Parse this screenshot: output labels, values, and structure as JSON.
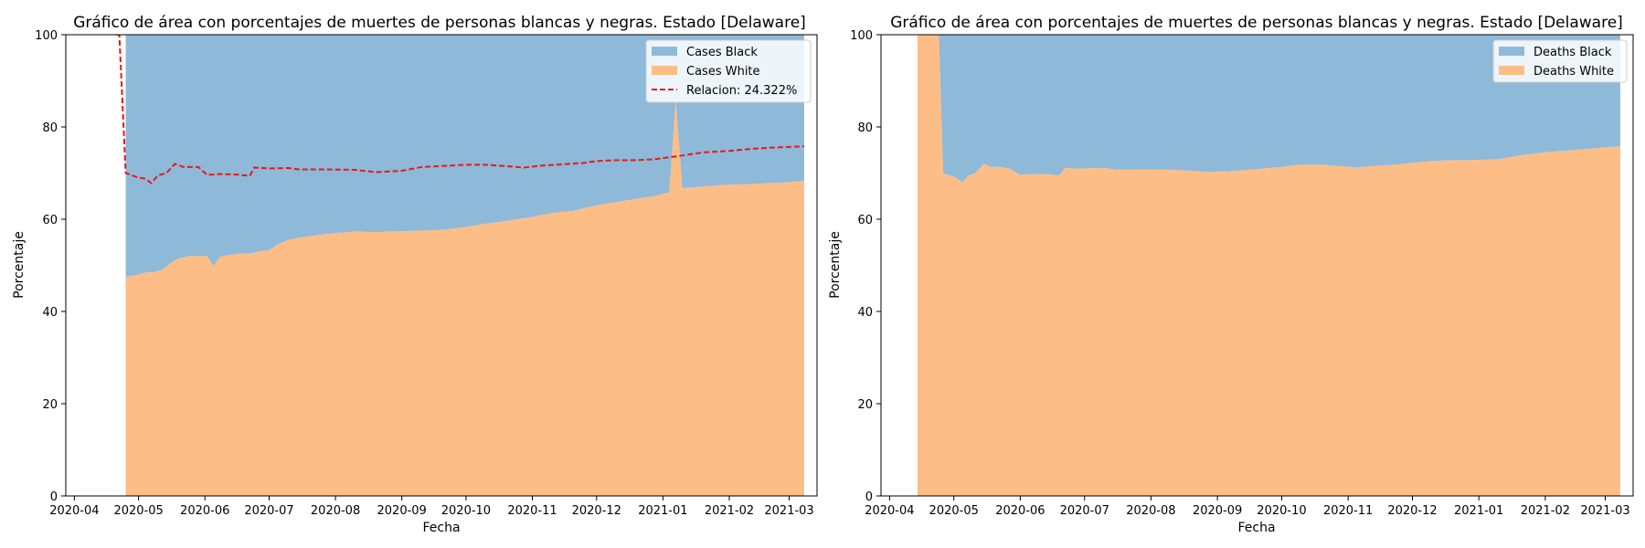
{
  "colors": {
    "black_fill": "#8fb9d9",
    "white_fill": "#fdbd87",
    "ratio_line": "#e41a1c"
  },
  "x_ticks": [
    "2020-04",
    "2020-05",
    "2020-06",
    "2020-07",
    "2020-08",
    "2020-09",
    "2020-10",
    "2020-11",
    "2020-12",
    "2021-01",
    "2021-02",
    "2021-03"
  ],
  "y_ticks": [
    "0",
    "20",
    "40",
    "60",
    "80",
    "100"
  ],
  "chart_data": [
    {
      "type": "area",
      "stacked": true,
      "title": "Gráfico de área con porcentajes de muertes de personas blancas y negras. Estado [Delaware]",
      "xlabel": "Fecha",
      "ylabel": "Porcentaje",
      "xlim": [
        "2020-03-28",
        "2021-03-14"
      ],
      "ylim": [
        0,
        100
      ],
      "grid": false,
      "legend_position": "top-right",
      "x": [
        "2020-04-25",
        "2020-05-01",
        "2020-05-05",
        "2020-05-08",
        "2020-05-12",
        "2020-05-16",
        "2020-05-20",
        "2020-05-25",
        "2020-05-30",
        "2020-06-02",
        "2020-06-05",
        "2020-06-08",
        "2020-06-12",
        "2020-06-18",
        "2020-06-22",
        "2020-06-26",
        "2020-07-01",
        "2020-07-05",
        "2020-07-10",
        "2020-07-15",
        "2020-07-25",
        "2020-08-01",
        "2020-08-10",
        "2020-08-20",
        "2020-09-01",
        "2020-09-10",
        "2020-09-20",
        "2020-10-01",
        "2020-10-10",
        "2020-10-20",
        "2020-11-01",
        "2020-11-10",
        "2020-11-20",
        "2020-12-01",
        "2020-12-10",
        "2020-12-20",
        "2020-12-28",
        "2021-01-01",
        "2021-01-04",
        "2021-01-07",
        "2021-01-10",
        "2021-01-20",
        "2021-02-01",
        "2021-02-10",
        "2021-02-20",
        "2021-03-01",
        "2021-03-08"
      ],
      "series": [
        {
          "name": "Cases White",
          "values": [
            47.5,
            48.0,
            48.5,
            48.5,
            49.0,
            50.5,
            51.5,
            52.0,
            52.0,
            52.0,
            49.8,
            51.8,
            52.2,
            52.6,
            52.5,
            53.0,
            53.3,
            54.5,
            55.5,
            56.0,
            56.6,
            57.0,
            57.3,
            57.2,
            57.4,
            57.5,
            57.7,
            58.3,
            59.0,
            59.6,
            60.5,
            61.3,
            61.8,
            63.0,
            63.7,
            64.4,
            65.0,
            65.5,
            65.8,
            86.0,
            66.7,
            67.1,
            67.5,
            67.6,
            67.8,
            68.0,
            68.3
          ]
        },
        {
          "name": "Cases Black",
          "values": [
            52.5,
            52.0,
            51.5,
            51.5,
            51.0,
            49.5,
            48.5,
            48.0,
            48.0,
            48.0,
            50.2,
            48.2,
            47.8,
            47.4,
            47.5,
            47.0,
            46.7,
            45.5,
            44.5,
            44.0,
            43.4,
            43.0,
            42.7,
            42.8,
            42.6,
            42.5,
            42.3,
            41.7,
            41.0,
            40.4,
            39.5,
            38.7,
            38.2,
            37.0,
            36.3,
            35.6,
            35.0,
            34.5,
            34.2,
            14.0,
            33.3,
            32.9,
            32.5,
            32.4,
            32.2,
            32.0,
            31.7
          ]
        }
      ],
      "ratio": {
        "name": "Relacion: 24.322%",
        "x": [
          "2020-04-22",
          "2020-04-25",
          "2020-04-28",
          "2020-05-01",
          "2020-05-04",
          "2020-05-07",
          "2020-05-10",
          "2020-05-14",
          "2020-05-18",
          "2020-05-22",
          "2020-05-29",
          "2020-06-02",
          "2020-06-08",
          "2020-06-15",
          "2020-06-22",
          "2020-06-24",
          "2020-07-01",
          "2020-07-10",
          "2020-07-15",
          "2020-07-25",
          "2020-08-10",
          "2020-08-20",
          "2020-09-01",
          "2020-09-10",
          "2020-10-01",
          "2020-10-10",
          "2020-10-20",
          "2020-10-28",
          "2020-11-05",
          "2020-11-15",
          "2020-11-25",
          "2020-12-01",
          "2020-12-10",
          "2020-12-20",
          "2020-12-28",
          "2021-01-10",
          "2021-01-20",
          "2021-02-01",
          "2021-02-10",
          "2021-02-20",
          "2021-03-08"
        ],
        "values": [
          100,
          70.0,
          69.5,
          69.0,
          68.8,
          67.8,
          69.5,
          70.0,
          72.0,
          71.3,
          71.3,
          69.6,
          69.8,
          69.7,
          69.4,
          71.2,
          71.0,
          71.1,
          70.8,
          70.8,
          70.7,
          70.2,
          70.5,
          71.3,
          71.8,
          71.8,
          71.5,
          71.2,
          71.6,
          71.9,
          72.2,
          72.6,
          72.8,
          72.8,
          73.0,
          73.8,
          74.5,
          74.8,
          75.2,
          75.5,
          75.8
        ]
      }
    },
    {
      "type": "area",
      "stacked": true,
      "title": "Gráfico de área con porcentajes de muertes de personas blancas y negras. Estado [Delaware]",
      "xlabel": "Fecha",
      "ylabel": "Porcentaje",
      "xlim": [
        "2020-03-28",
        "2021-03-14"
      ],
      "ylim": [
        0,
        100
      ],
      "grid": false,
      "legend_position": "top-right",
      "x": [
        "2020-04-14",
        "2020-04-24",
        "2020-04-26",
        "2020-04-29",
        "2020-05-02",
        "2020-05-05",
        "2020-05-08",
        "2020-05-11",
        "2020-05-15",
        "2020-05-18",
        "2020-05-22",
        "2020-05-27",
        "2020-06-01",
        "2020-06-08",
        "2020-06-15",
        "2020-06-19",
        "2020-06-22",
        "2020-06-25",
        "2020-07-01",
        "2020-07-10",
        "2020-07-15",
        "2020-07-25",
        "2020-08-10",
        "2020-08-20",
        "2020-08-28",
        "2020-09-10",
        "2020-10-01",
        "2020-10-10",
        "2020-10-20",
        "2020-10-28",
        "2020-11-05",
        "2020-11-15",
        "2020-11-25",
        "2020-12-01",
        "2020-12-10",
        "2020-12-20",
        "2020-12-28",
        "2021-01-10",
        "2021-01-20",
        "2021-02-01",
        "2021-02-10",
        "2021-02-20",
        "2021-03-08"
      ],
      "series": [
        {
          "name": "Deaths White",
          "values": [
            100,
            100,
            70.0,
            69.5,
            69.0,
            68.0,
            69.5,
            70.0,
            72.0,
            71.3,
            71.3,
            71.0,
            69.6,
            69.8,
            69.7,
            69.4,
            71.2,
            71.0,
            71.0,
            71.1,
            70.8,
            70.8,
            70.7,
            70.5,
            70.2,
            70.5,
            71.3,
            71.8,
            71.8,
            71.5,
            71.2,
            71.6,
            71.9,
            72.2,
            72.6,
            72.8,
            72.8,
            73.0,
            73.8,
            74.5,
            74.8,
            75.2,
            75.8
          ]
        },
        {
          "name": "Deaths Black",
          "values": [
            0,
            0,
            30.0,
            30.5,
            31.0,
            32.0,
            30.5,
            30.0,
            28.0,
            28.7,
            28.7,
            29.0,
            30.4,
            30.2,
            30.3,
            30.6,
            28.8,
            29.0,
            29.0,
            28.9,
            29.2,
            29.2,
            29.3,
            29.5,
            29.8,
            29.5,
            28.7,
            28.2,
            28.2,
            28.5,
            28.8,
            28.4,
            28.1,
            27.8,
            27.4,
            27.2,
            27.2,
            27.0,
            26.2,
            25.5,
            25.2,
            24.8,
            24.2
          ]
        }
      ]
    }
  ]
}
